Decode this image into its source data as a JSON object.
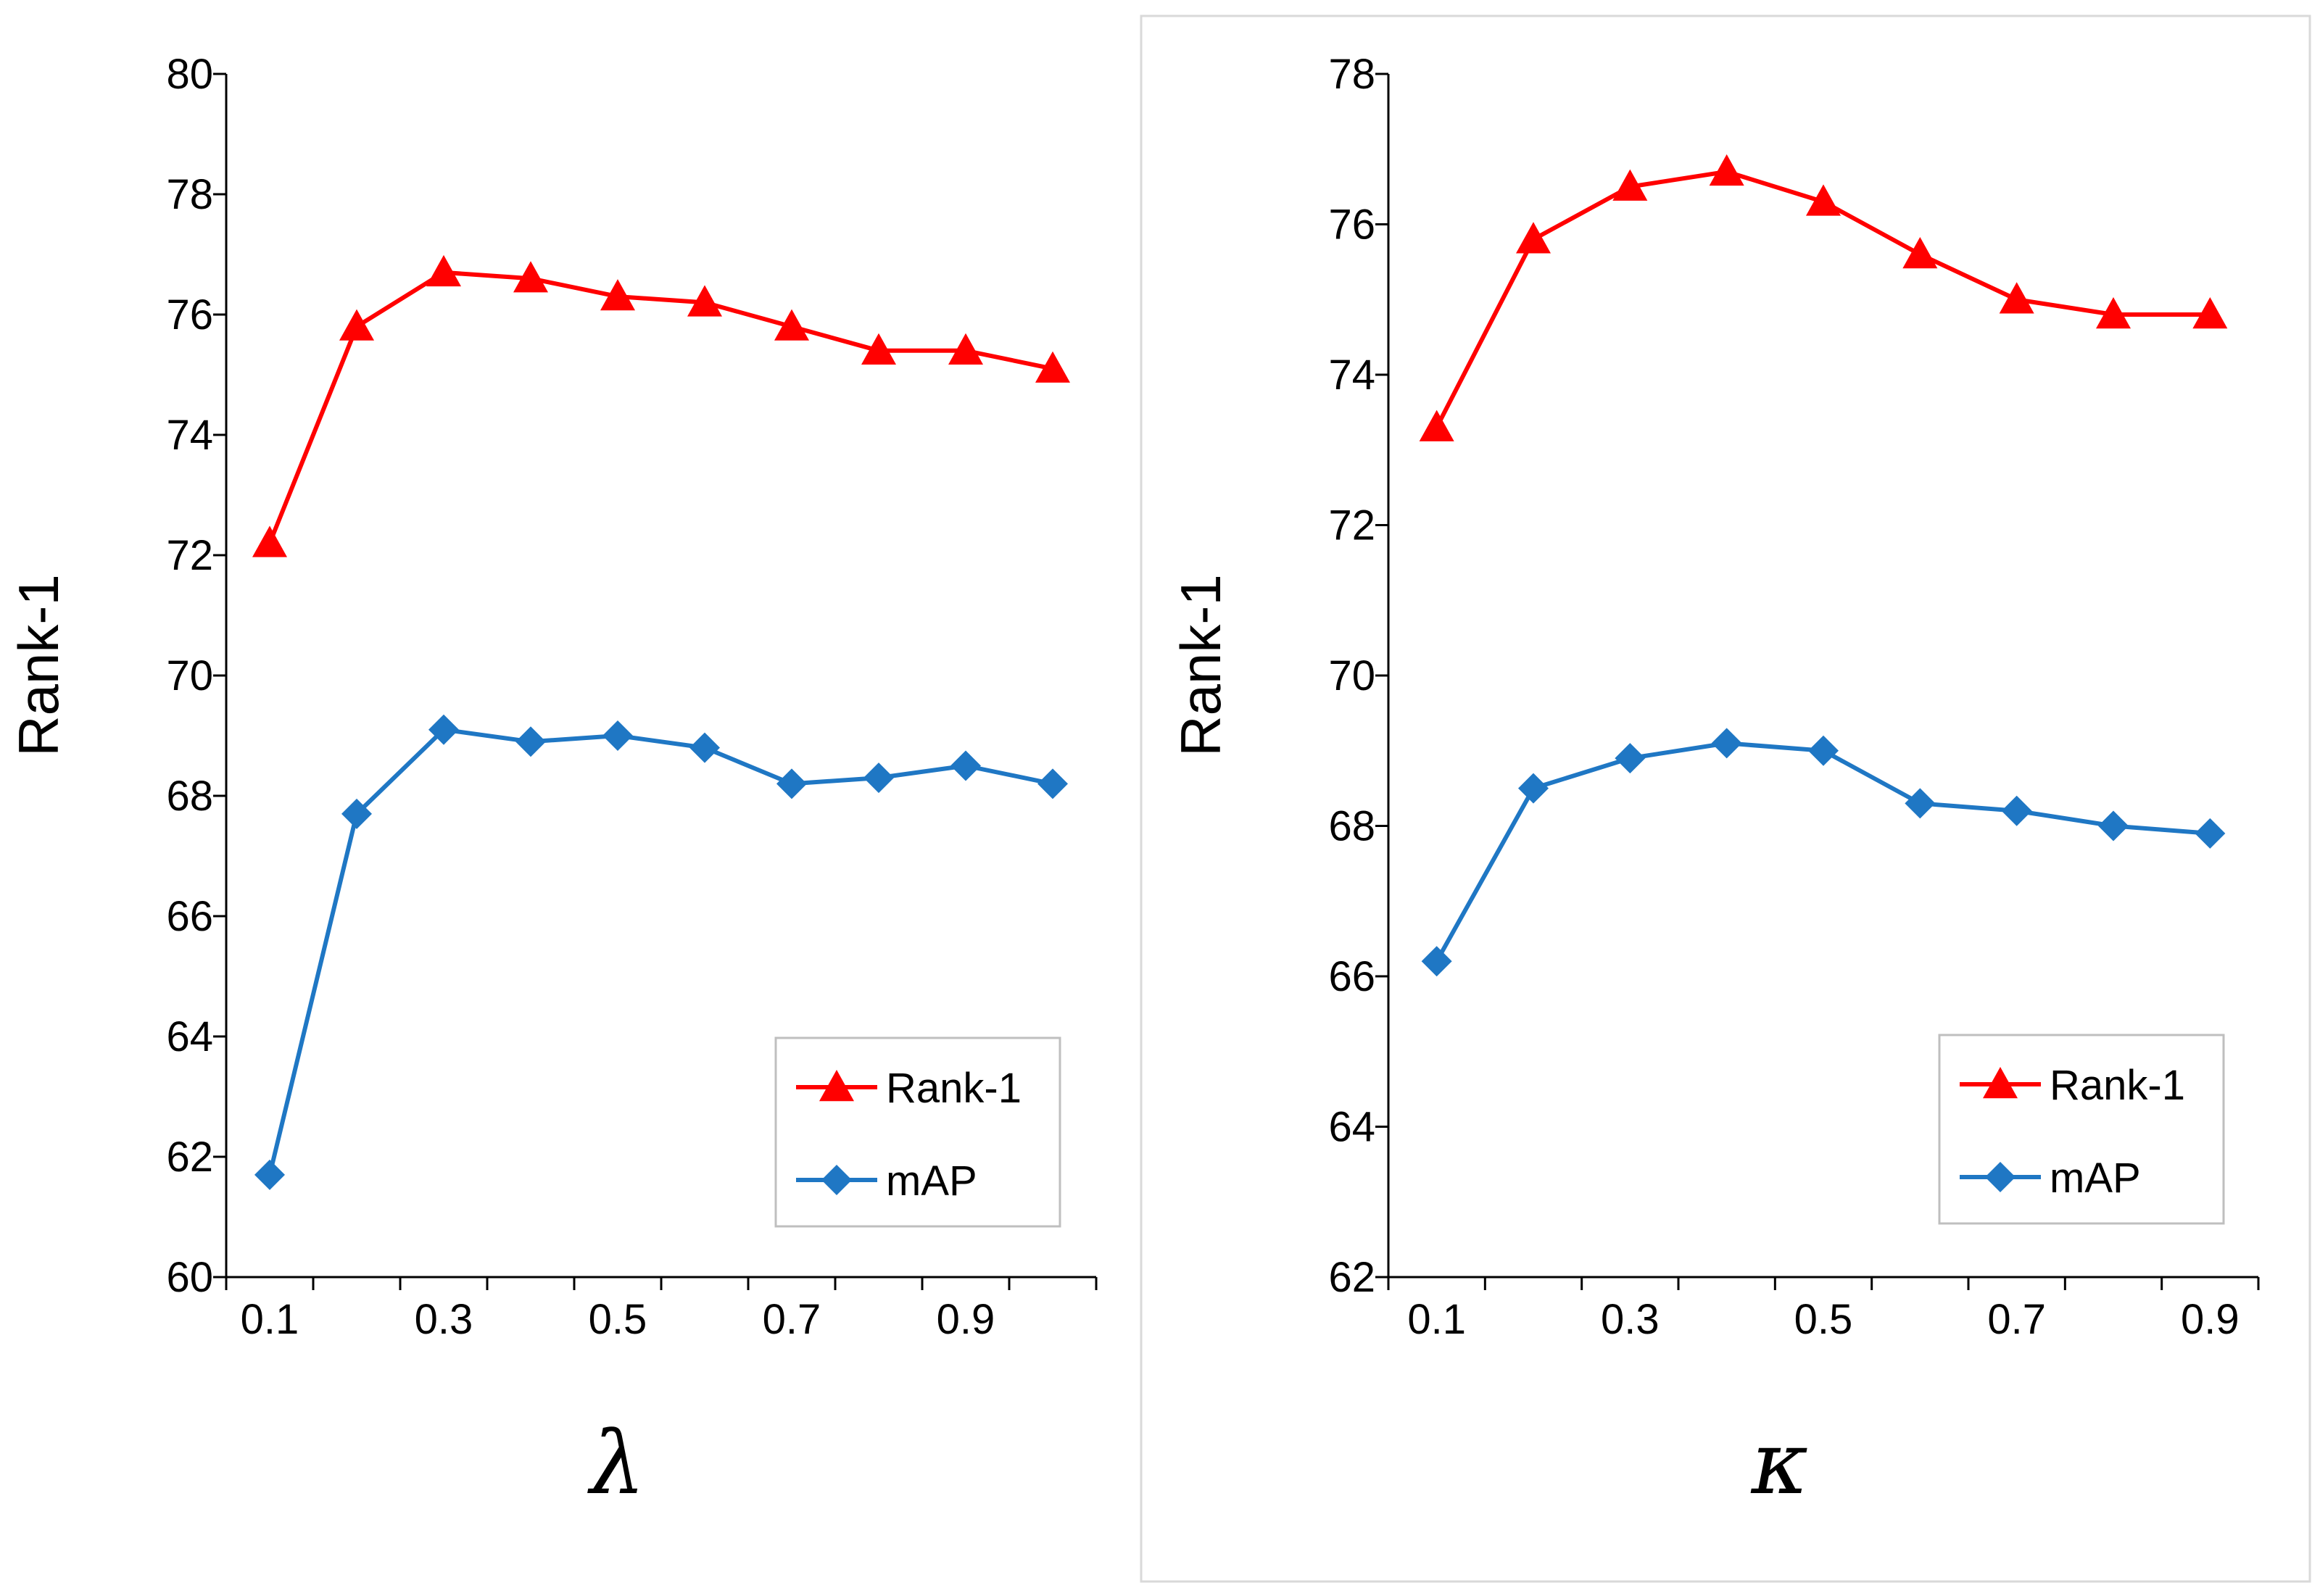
{
  "chart_data": [
    {
      "type": "line",
      "xlabel": "λ",
      "ylabel": "Rank-1",
      "ylim": [
        60,
        80
      ],
      "yticks": [
        60,
        62,
        64,
        66,
        68,
        70,
        72,
        74,
        76,
        78,
        80
      ],
      "xlim": [
        0.05,
        1.05
      ],
      "xticks": [
        0.1,
        0.3,
        0.5,
        0.7,
        0.9
      ],
      "xtick_labels": [
        "0.1",
        "0.3",
        "0.5",
        "0.7",
        "0.9"
      ],
      "legend_position": "bottom-right",
      "x": [
        0.1,
        0.2,
        0.3,
        0.4,
        0.5,
        0.6,
        0.7,
        0.8,
        0.9,
        1.0
      ],
      "series": [
        {
          "name": "Rank-1",
          "color": "#ff0000",
          "marker": "triangle",
          "values": [
            72.2,
            75.8,
            76.7,
            76.6,
            76.3,
            76.2,
            75.8,
            75.4,
            75.4,
            75.1
          ]
        },
        {
          "name": "mAP",
          "color": "#1f77c4",
          "marker": "diamond",
          "values": [
            61.7,
            67.7,
            69.1,
            68.9,
            69.0,
            68.8,
            68.2,
            68.3,
            68.5,
            68.2
          ]
        }
      ]
    },
    {
      "type": "line",
      "xlabel": "κ",
      "ylabel": "Rank-1",
      "ylim": [
        62,
        78
      ],
      "yticks": [
        62,
        64,
        66,
        68,
        70,
        72,
        74,
        76,
        78
      ],
      "xlim": [
        0.05,
        0.95
      ],
      "xticks": [
        0.1,
        0.3,
        0.5,
        0.7,
        0.9
      ],
      "xtick_labels": [
        "0.1",
        "0.3",
        "0.5",
        "0.7",
        "0.9"
      ],
      "legend_position": "bottom-right",
      "x": [
        0.1,
        0.2,
        0.3,
        0.4,
        0.5,
        0.6,
        0.7,
        0.8,
        0.9
      ],
      "series": [
        {
          "name": "Rank-1",
          "color": "#ff0000",
          "marker": "triangle",
          "values": [
            73.3,
            75.8,
            76.5,
            76.7,
            76.3,
            75.6,
            75.0,
            74.8,
            74.8
          ]
        },
        {
          "name": "mAP",
          "color": "#1f77c4",
          "marker": "diamond",
          "values": [
            66.2,
            68.5,
            68.9,
            69.1,
            69.0,
            68.3,
            68.2,
            68.0,
            67.9
          ]
        }
      ]
    }
  ]
}
